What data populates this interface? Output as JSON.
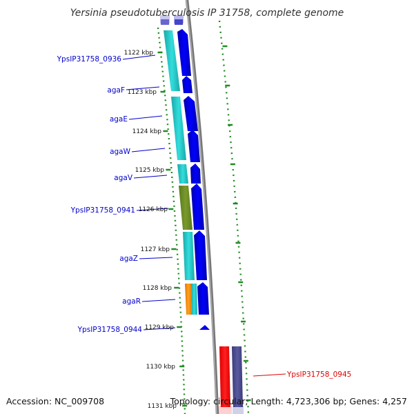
{
  "title": "Yersinia pseudotuberculosis IP 31758, complete genome",
  "footer": {
    "accession": "Accession: NC_009708",
    "topology": "Topology: circular; Length: 4,723,306 bp; Genes: 4,257"
  },
  "ticks": [
    "1122 kbp",
    "1123 kbp",
    "1124 kbp",
    "1125 kbp",
    "1126 kbp",
    "1127 kbp",
    "1128 kbp",
    "1129 kbp",
    "1130 kbp",
    "1131 kbp"
  ],
  "colors": {
    "cds_arrow": "#0000ee",
    "gene_label": "#0000cc",
    "highlight_label": "#dd0000",
    "backbone": "#888888",
    "cyan": "#22cccc",
    "olive": "#6b8e23",
    "orange": "#ff8c00",
    "red": "#ff0000",
    "slate": "#4a4a8a",
    "tick": "#228b22"
  },
  "genes": [
    {
      "label": "YpsIP31758_0936",
      "color": "#0000cc"
    },
    {
      "label": "agaF",
      "color": "#0000cc"
    },
    {
      "label": "agaE",
      "color": "#0000cc"
    },
    {
      "label": "agaW",
      "color": "#0000cc"
    },
    {
      "label": "agaV",
      "color": "#0000cc"
    },
    {
      "label": "YpsIP31758_0941",
      "color": "#0000cc"
    },
    {
      "label": "agaZ",
      "color": "#0000cc"
    },
    {
      "label": "agaR",
      "color": "#0000cc"
    },
    {
      "label": "YpsIP31758_0944",
      "color": "#0000cc"
    },
    {
      "label": "YpsIP31758_0945",
      "color": "#dd0000"
    }
  ]
}
